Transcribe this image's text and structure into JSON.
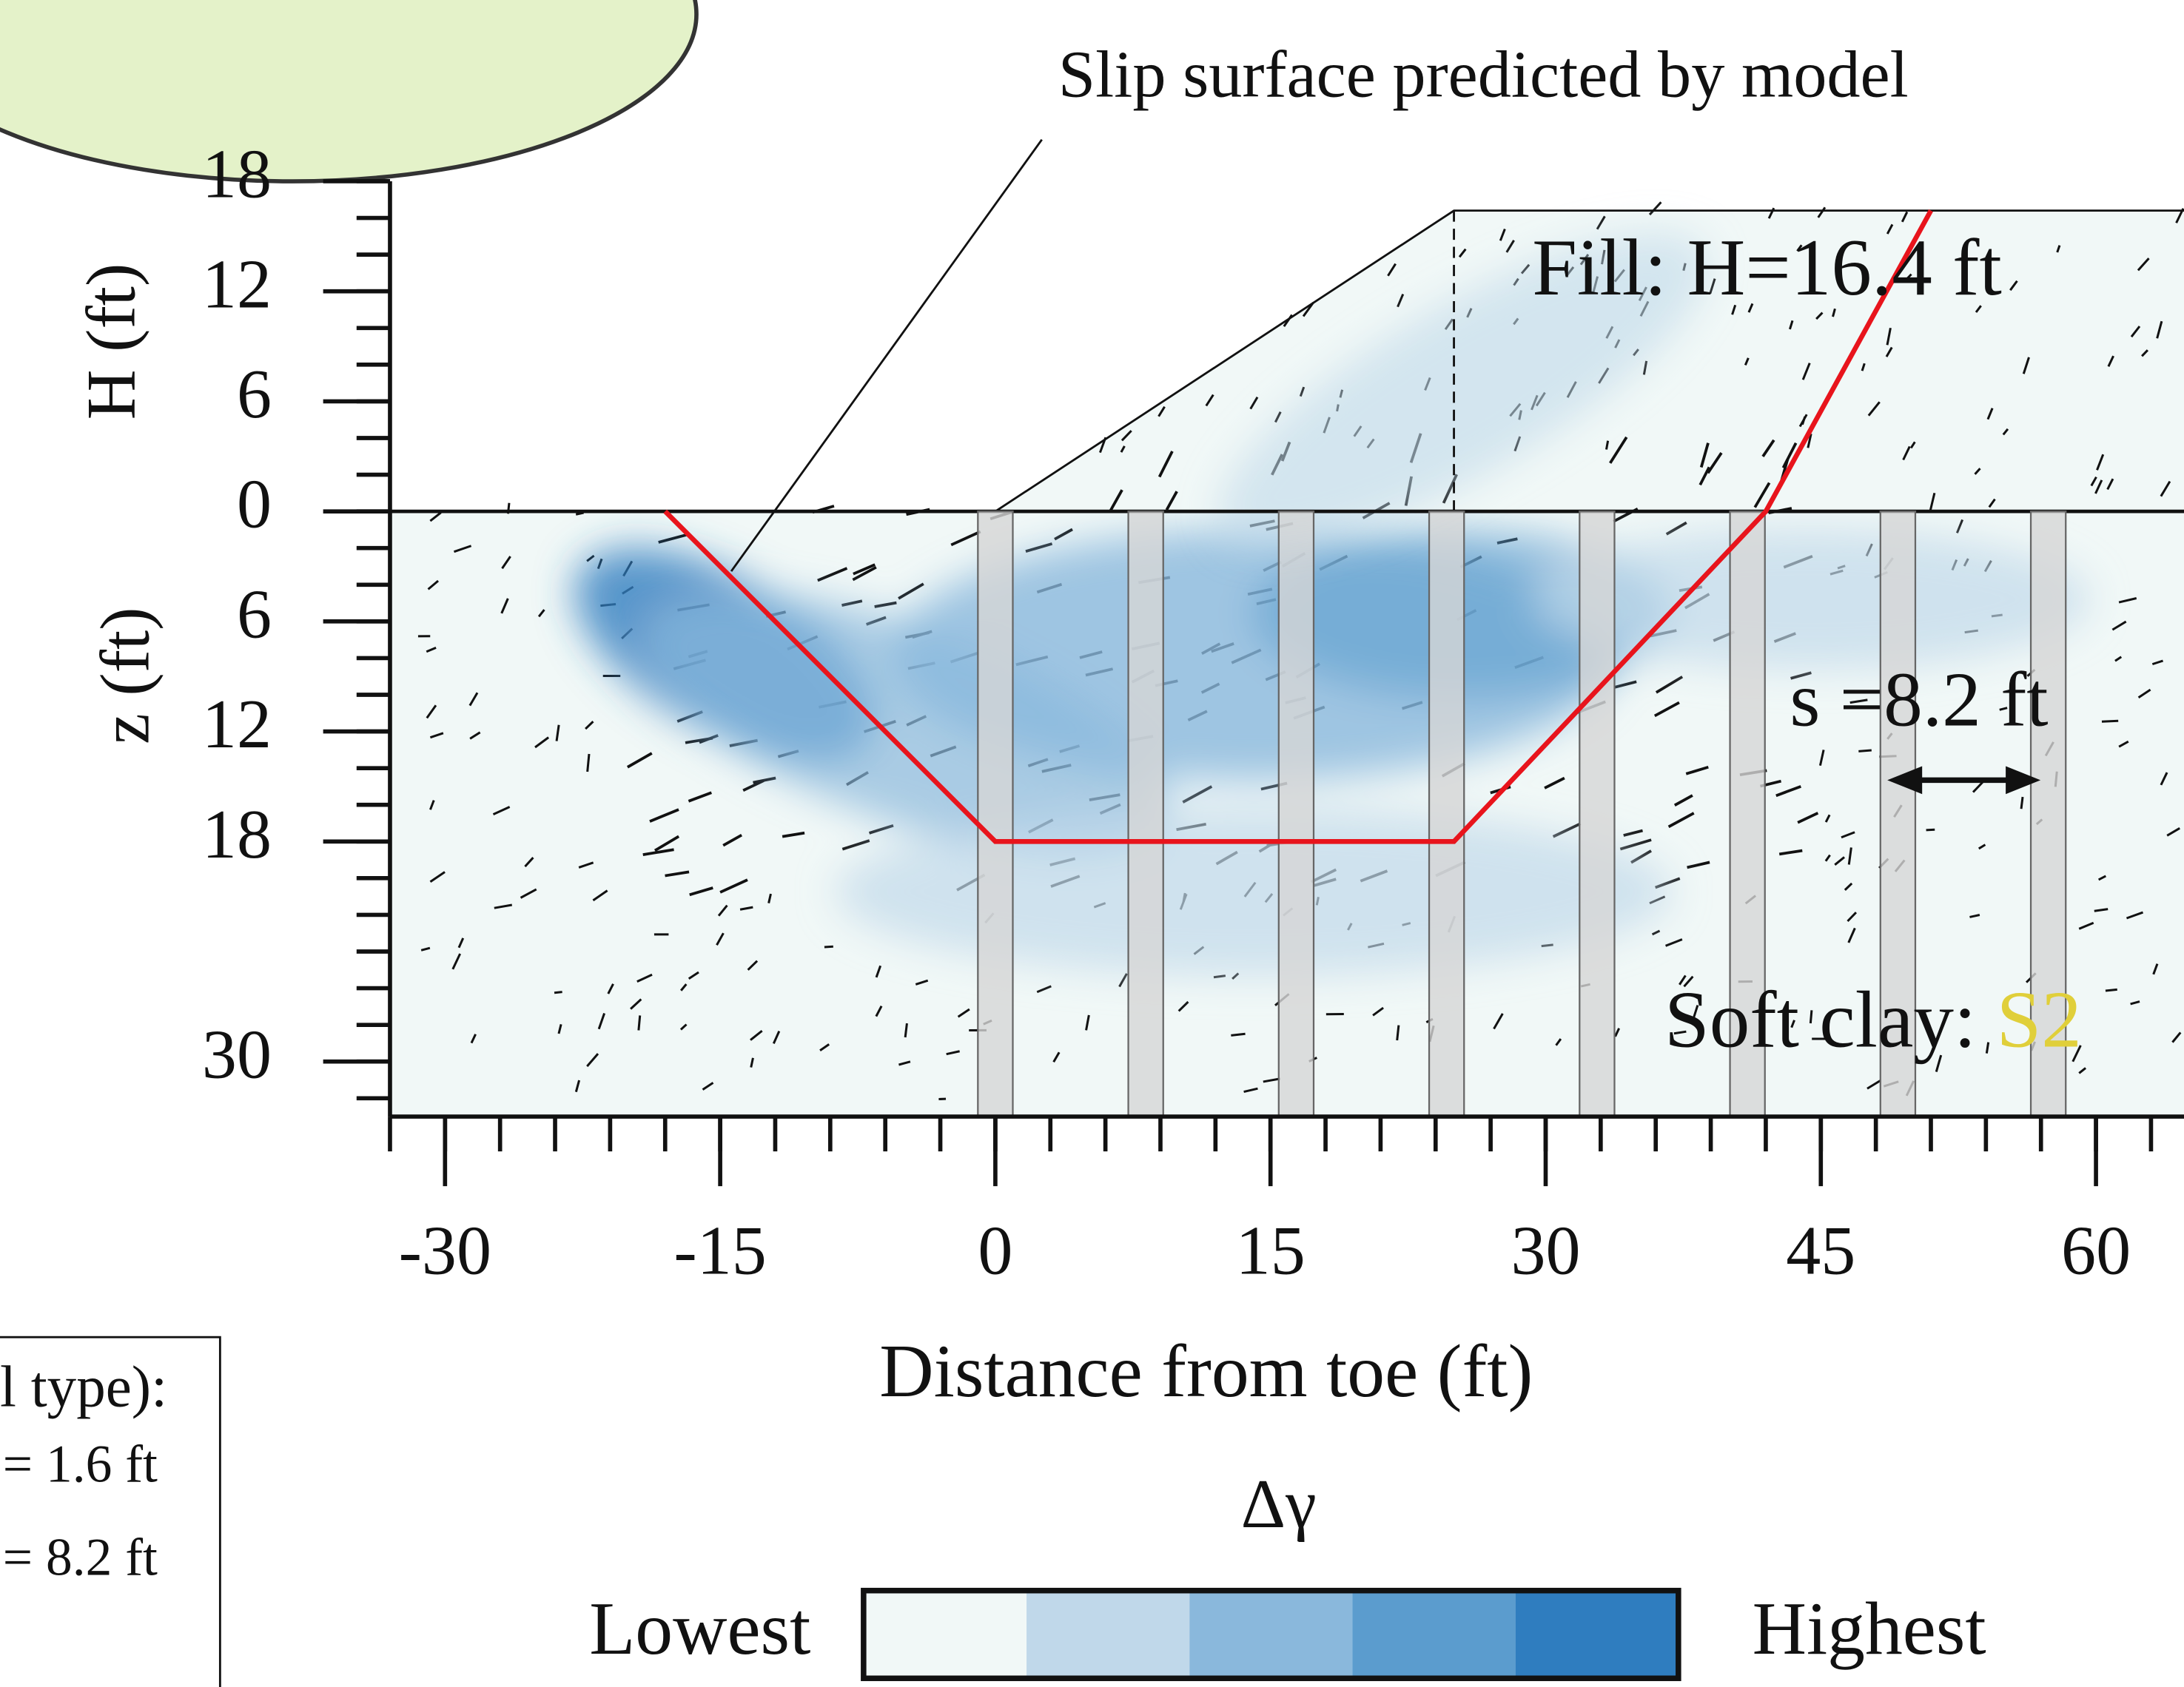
{
  "chart_data": {
    "type": "profile",
    "annotation": "Slip surface predicted by model",
    "fill_label": "Fill: H=16.4  ft",
    "spacing_label": "s =8.2 ft",
    "soil_label": "Soft clay: ",
    "soil_code": "S2",
    "soil_code_color": "#e0cf3a",
    "ylabel_upper": "H (ft)",
    "ylabel_lower": "z (ft)",
    "xlabel": "Distance from toe (ft)",
    "xlim": [
      -33,
      65
    ],
    "ylim": [
      -33,
      18
    ],
    "xticks": [
      -30,
      -15,
      0,
      15,
      30,
      45,
      60
    ],
    "yticks": [
      {
        "value": -30,
        "label": "30"
      },
      {
        "value": -18,
        "label": "18"
      },
      {
        "value": -12,
        "label": "12"
      },
      {
        "value": -6,
        "label": "6"
      },
      0,
      6,
      12,
      18
    ],
    "slip_surface": {
      "color": "#e8141c",
      "x": [
        -18,
        0,
        25,
        42,
        51
      ],
      "y": [
        0,
        -18,
        -18,
        0,
        16.4
      ]
    },
    "embankment": {
      "x": [
        0,
        25,
        65
      ],
      "y": [
        0,
        16.4,
        16.4
      ]
    },
    "columns": {
      "x": [
        0,
        8.2,
        16.4,
        24.6,
        32.8,
        41,
        49.2,
        57.4
      ],
      "width": 1.6
    },
    "colorbar": {
      "title": "Δγ",
      "low": "Lowest",
      "high": "Highest",
      "colors": [
        "#f1f8f7",
        "#c0d8ea",
        "#8ab8dc",
        "#5b9cce",
        "#2f7dbf"
      ]
    },
    "legend": {
      "title": "l type):",
      "items": [
        "= 1.6 ft",
        "= 8.2 ft"
      ]
    }
  }
}
